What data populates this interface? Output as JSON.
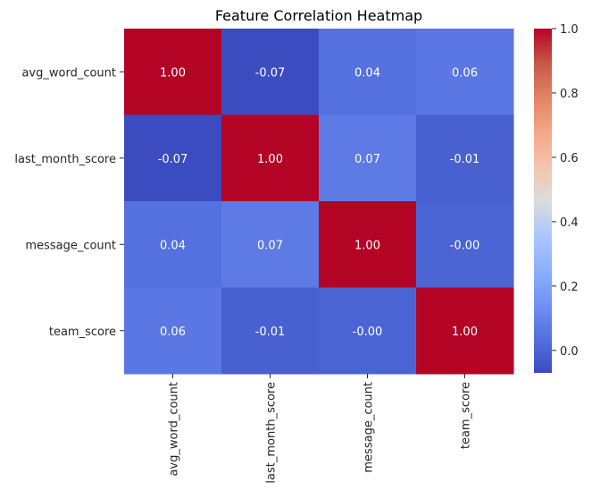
{
  "chart_data": {
    "type": "heatmap",
    "title": "Feature Correlation Heatmap",
    "x_categories": [
      "avg_word_count",
      "last_month_score",
      "message_count",
      "team_score"
    ],
    "y_categories": [
      "avg_word_count",
      "last_month_score",
      "message_count",
      "team_score"
    ],
    "values": [
      [
        1.0,
        -0.07,
        0.04,
        0.06
      ],
      [
        -0.07,
        1.0,
        0.07,
        -0.01
      ],
      [
        0.04,
        0.07,
        1.0,
        -0.0
      ],
      [
        0.06,
        -0.01,
        -0.0,
        1.0
      ]
    ],
    "cell_labels": [
      [
        "1.00",
        "-0.07",
        "0.04",
        "0.06"
      ],
      [
        "-0.07",
        "1.00",
        "0.07",
        "-0.01"
      ],
      [
        "0.04",
        "0.07",
        "1.00",
        "-0.00"
      ],
      [
        "0.06",
        "-0.01",
        "-0.00",
        "1.00"
      ]
    ],
    "colormap": "coolwarm",
    "colorbar": {
      "range": [
        -0.07,
        1.0
      ],
      "ticks": [
        0.0,
        0.2,
        0.4,
        0.6,
        0.8,
        1.0
      ],
      "tick_labels": [
        "0.0",
        "0.2",
        "0.4",
        "0.6",
        "0.8",
        "1.0"
      ]
    },
    "legend": "colorbar-right"
  }
}
